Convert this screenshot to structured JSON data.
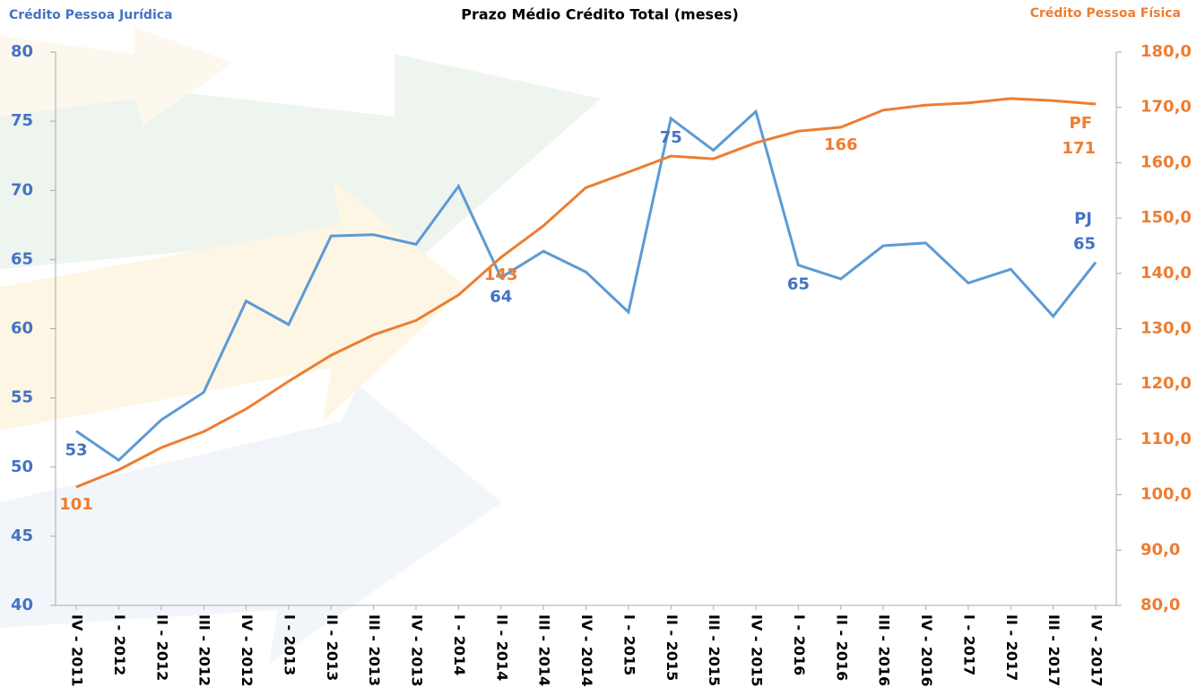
{
  "chart_data": {
    "type": "line",
    "title": "Prazo Médio Crédito Total (meses)",
    "y_label": "Crédito Pessoa Jurídica",
    "y2_label": "Crédito Pessoa Física",
    "categories": [
      "IV - 2011",
      "I - 2012",
      "II - 2012",
      "III - 2012",
      "IV - 2012",
      "I - 2013",
      "II - 2013",
      "III - 2013",
      "IV - 2013",
      "I - 2014",
      "II - 2014",
      "III - 2014",
      "IV - 2014",
      "I - 2015",
      "II - 2015",
      "III - 2015",
      "IV - 2015",
      "I - 2016",
      "II - 2016",
      "III - 2016",
      "IV - 2016",
      "I - 2017",
      "II - 2017",
      "III - 2017",
      "IV - 2017"
    ],
    "series": [
      {
        "name": "PJ",
        "color": "#5b9bd5",
        "label_color": "#4472c4",
        "axis": "y",
        "values": [
          52.6,
          50.5,
          53.4,
          55.4,
          62.0,
          60.3,
          66.7,
          66.8,
          66.1,
          70.3,
          63.7,
          65.6,
          64.1,
          61.2,
          75.2,
          72.9,
          75.7,
          64.6,
          63.6,
          66.0,
          66.2,
          63.3,
          64.3,
          60.9,
          64.8
        ],
        "value_labels": [
          "53",
          null,
          null,
          null,
          null,
          null,
          null,
          null,
          null,
          null,
          "64",
          null,
          null,
          null,
          "75",
          null,
          null,
          "65",
          null,
          null,
          null,
          null,
          null,
          null,
          "65"
        ]
      },
      {
        "name": "PF",
        "color": "#ed7d31",
        "label_color": "#ed7d31",
        "axis": "y2",
        "values": [
          101.4,
          104.5,
          108.5,
          111.4,
          115.5,
          120.5,
          125.2,
          128.9,
          131.5,
          136.1,
          142.9,
          148.6,
          155.5,
          158.3,
          161.2,
          160.7,
          163.6,
          165.7,
          166.4,
          169.5,
          170.4,
          170.8,
          171.6,
          171.2,
          170.6
        ],
        "value_labels": [
          "101",
          null,
          null,
          null,
          null,
          null,
          null,
          null,
          null,
          null,
          "143",
          null,
          null,
          null,
          null,
          null,
          null,
          null,
          "166",
          null,
          null,
          null,
          null,
          null,
          "171"
        ]
      }
    ],
    "ylim": [
      40,
      80
    ],
    "yticks": [
      40,
      45,
      50,
      55,
      60,
      65,
      70,
      75,
      80
    ],
    "y2lim": [
      80,
      180
    ],
    "y2ticks": [
      {
        "value": 80,
        "label": "80,0"
      },
      {
        "value": 90,
        "label": "90,0"
      },
      {
        "value": 100,
        "label": "100,0"
      },
      {
        "value": 110,
        "label": "110,0"
      },
      {
        "value": 120,
        "label": "120,0"
      },
      {
        "value": 130,
        "label": "130,0"
      },
      {
        "value": 140,
        "label": "140,0"
      },
      {
        "value": 150,
        "label": "150,0"
      },
      {
        "value": 160,
        "label": "160,0"
      },
      {
        "value": 170,
        "label": "170,0"
      },
      {
        "value": 180,
        "label": "180,0"
      }
    ],
    "grid": false
  }
}
